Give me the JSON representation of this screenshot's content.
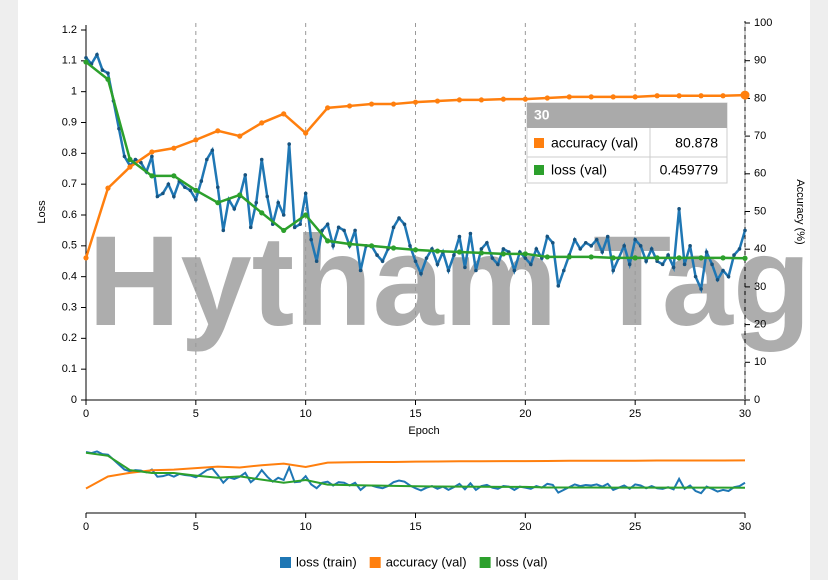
{
  "watermark": "Hytham Tag",
  "chart_data": {
    "type": "line",
    "x_label": "Epoch",
    "y_label": "Loss",
    "y2_label": "Accuracy (%)",
    "xlim": [
      0,
      30
    ],
    "xticks": [
      0,
      5,
      10,
      15,
      20,
      25,
      30
    ],
    "ylim": [
      0,
      1.2
    ],
    "yticks": [
      0,
      0.1,
      0.2,
      0.3,
      0.4,
      0.5,
      0.6,
      0.7,
      0.8,
      0.9,
      1,
      1.1,
      1.2
    ],
    "y2lim": [
      0,
      100
    ],
    "y2ticks": [
      0,
      10,
      20,
      30,
      40,
      50,
      60,
      70,
      80,
      90,
      100
    ],
    "grid": true,
    "series": [
      {
        "name": "loss (train)",
        "color": "#1f77b4",
        "x": [
          0,
          0.25,
          0.5,
          0.75,
          1,
          1.25,
          1.5,
          1.75,
          2,
          2.25,
          2.5,
          2.75,
          3,
          3.25,
          3.5,
          3.75,
          4,
          4.25,
          4.5,
          4.75,
          5,
          5.25,
          5.5,
          5.75,
          6,
          6.25,
          6.5,
          6.75,
          7,
          7.25,
          7.5,
          7.75,
          8,
          8.25,
          8.5,
          8.75,
          9,
          9.25,
          9.5,
          9.75,
          10,
          10.25,
          10.5,
          10.75,
          11,
          11.25,
          11.5,
          11.75,
          12,
          12.25,
          12.5,
          12.75,
          13,
          13.25,
          13.5,
          13.75,
          14,
          14.25,
          14.5,
          14.75,
          15,
          15.25,
          15.5,
          15.75,
          16,
          16.25,
          16.5,
          16.75,
          17,
          17.25,
          17.5,
          17.75,
          18,
          18.25,
          18.5,
          18.75,
          19,
          19.25,
          19.5,
          19.75,
          20,
          20.25,
          20.5,
          20.75,
          21,
          21.25,
          21.5,
          21.75,
          22,
          22.25,
          22.5,
          22.75,
          23,
          23.25,
          23.5,
          23.75,
          24,
          24.25,
          24.5,
          24.75,
          25,
          25.25,
          25.5,
          25.75,
          26,
          26.25,
          26.5,
          26.75,
          27,
          27.25,
          27.5,
          27.75,
          28,
          28.25,
          28.5,
          28.75,
          29,
          29.25,
          29.5,
          29.75,
          30
        ],
        "values": [
          1.11,
          1.09,
          1.12,
          1.07,
          1.06,
          0.97,
          0.88,
          0.79,
          0.76,
          0.78,
          0.77,
          0.74,
          0.79,
          0.66,
          0.67,
          0.7,
          0.66,
          0.71,
          0.69,
          0.68,
          0.65,
          0.71,
          0.78,
          0.81,
          0.69,
          0.55,
          0.65,
          0.62,
          0.66,
          0.73,
          0.56,
          0.64,
          0.78,
          0.66,
          0.57,
          0.64,
          0.6,
          0.83,
          0.56,
          0.57,
          0.67,
          0.52,
          0.45,
          0.55,
          0.57,
          0.5,
          0.56,
          0.55,
          0.5,
          0.55,
          0.42,
          0.5,
          0.5,
          0.47,
          0.45,
          0.49,
          0.56,
          0.59,
          0.57,
          0.5,
          0.45,
          0.41,
          0.46,
          0.49,
          0.44,
          0.48,
          0.42,
          0.47,
          0.53,
          0.43,
          0.54,
          0.42,
          0.49,
          0.51,
          0.46,
          0.44,
          0.49,
          0.48,
          0.42,
          0.48,
          0.46,
          0.44,
          0.49,
          0.46,
          0.53,
          0.51,
          0.37,
          0.42,
          0.47,
          0.52,
          0.49,
          0.51,
          0.5,
          0.52,
          0.48,
          0.53,
          0.42,
          0.46,
          0.5,
          0.44,
          0.52,
          0.5,
          0.45,
          0.49,
          0.45,
          0.44,
          0.47,
          0.43,
          0.62,
          0.44,
          0.5,
          0.4,
          0.36,
          0.48,
          0.44,
          0.39,
          0.42,
          0.4,
          0.47,
          0.49,
          0.55
        ]
      },
      {
        "name": "accuracy (val)",
        "color": "#ff7f0e",
        "axis": "y2",
        "x": [
          0,
          1,
          2,
          3,
          4,
          5,
          6,
          7,
          8,
          9,
          10,
          11,
          12,
          13,
          14,
          15,
          16,
          17,
          18,
          19,
          20,
          21,
          22,
          23,
          24,
          25,
          26,
          27,
          28,
          29,
          30
        ],
        "values": [
          37.7,
          56.2,
          61.8,
          65.8,
          66.8,
          69,
          71.4,
          70,
          73.5,
          75.9,
          70.8,
          77.5,
          78,
          78.5,
          78.5,
          79,
          79.3,
          79.6,
          79.6,
          79.8,
          79.8,
          80.1,
          80.4,
          80.4,
          80.4,
          80.4,
          80.7,
          80.7,
          80.7,
          80.7,
          80.878
        ]
      },
      {
        "name": "loss (val)",
        "color": "#2ca02c",
        "x": [
          0,
          1,
          2,
          3,
          4,
          5,
          6,
          7,
          8,
          9,
          10,
          11,
          12,
          13,
          14,
          15,
          16,
          17,
          18,
          19,
          20,
          21,
          22,
          23,
          24,
          25,
          26,
          27,
          28,
          29,
          30
        ],
        "values": [
          1.096,
          1.04,
          0.78,
          0.727,
          0.727,
          0.68,
          0.64,
          0.665,
          0.607,
          0.55,
          0.6,
          0.516,
          0.506,
          0.5,
          0.493,
          0.487,
          0.483,
          0.48,
          0.477,
          0.474,
          0.474,
          0.464,
          0.464,
          0.464,
          0.461,
          0.461,
          0.461,
          0.461,
          0.461,
          0.461,
          0.459779
        ]
      }
    ]
  }
}
